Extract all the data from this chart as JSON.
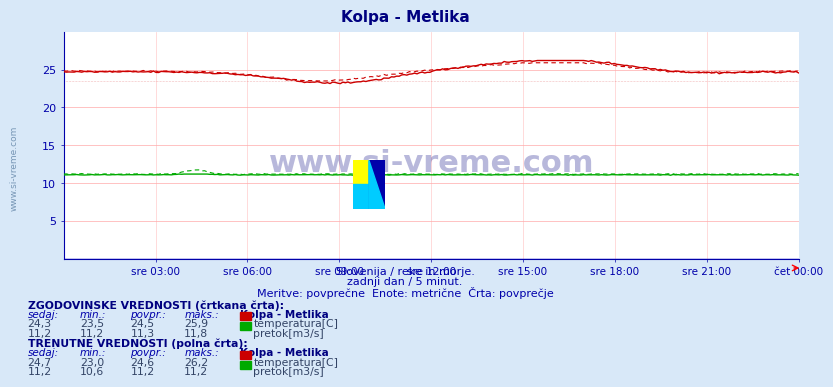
{
  "title": "Kolpa - Metlika",
  "title_color": "#000080",
  "bg_color": "#d8e8f8",
  "plot_bg_color": "#ffffff",
  "grid_color_h": "#ffaaaa",
  "grid_color_v": "#ffcccc",
  "axis_color": "#0000aa",
  "text_color": "#0000aa",
  "xlabel_ticks": [
    "sre 03:00",
    "sre 06:00",
    "sre 09:00",
    "sre 12:00",
    "sre 15:00",
    "sre 18:00",
    "sre 21:00",
    "čet 00:00"
  ],
  "xlabel_tick_positions": [
    0.125,
    0.25,
    0.375,
    0.5,
    0.625,
    0.75,
    0.875,
    1.0
  ],
  "ylim_min": 0,
  "ylim_max": 30,
  "ytick_vals": [
    5,
    10,
    15,
    20,
    25
  ],
  "watermark_text": "www.si-vreme.com",
  "logo_colors": [
    "#ffff00",
    "#00ccff",
    "#0000aa"
  ],
  "sub_text1": "Slovenija / reke in morje.",
  "sub_text2": "zadnji dan / 5 minut.",
  "sub_text3": "Meritve: povprečne  Enote: metrične  Črta: povprečje",
  "temp_color": "#cc0000",
  "flow_color": "#00aa00",
  "hist_label": "ZGODOVINSKE VREDNOSTI (črtkana črta):",
  "curr_label": "TRENUTNE VREDNOSTI (polna črta):",
  "col_headers": [
    "sedaj:",
    "min.:",
    "povpr.:",
    "maks.:",
    "Kolpa - Metlika"
  ],
  "hist_temp_vals": [
    "24,3",
    "23,5",
    "24,5",
    "25,9"
  ],
  "hist_flow_vals": [
    "11,2",
    "11,2",
    "11,3",
    "11,8"
  ],
  "curr_temp_vals": [
    "24,7",
    "23,0",
    "24,6",
    "26,2"
  ],
  "curr_flow_vals": [
    "11,2",
    "10,6",
    "11,2",
    "11,2"
  ],
  "temp_label": "temperatura[C]",
  "flow_label": "pretok[m3/s]",
  "n_points": 288,
  "temp_hist_min": 23.5,
  "temp_hist_max": 25.9,
  "temp_curr_min": 23.0,
  "temp_curr_max": 26.2,
  "flow_hist_min": 11.2,
  "flow_hist_max": 11.8,
  "flow_curr_min": 10.6,
  "flow_curr_max": 11.2,
  "left_label": "www.si-vreme.com"
}
